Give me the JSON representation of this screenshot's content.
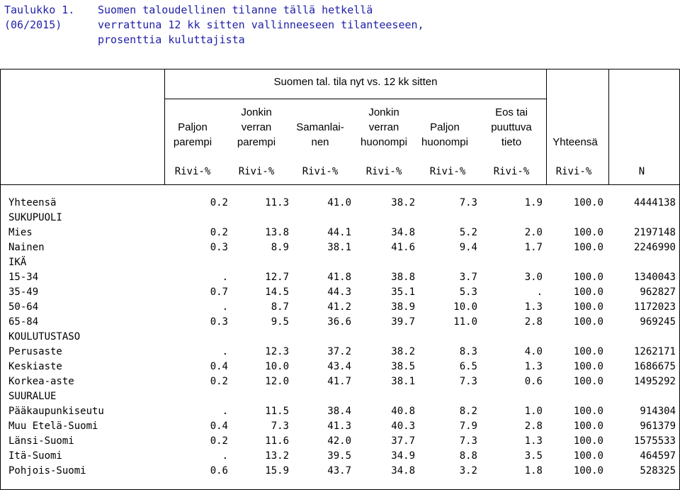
{
  "caption": {
    "label_lines": [
      "Taulukko 1.",
      "(06/2015)"
    ],
    "text_lines": [
      "Suomen taloudellinen tilanne tällä hetkellä",
      "verrattuna 12 kk sitten vallinneeseen tilanteeseen,",
      "prosenttia kuluttajista"
    ]
  },
  "header": {
    "group": "Suomen tal. tila nyt vs. 12 kk sitten",
    "columns": [
      [
        "",
        "Paljon",
        "parempi"
      ],
      [
        "Jonkin",
        "verran",
        "parempi"
      ],
      [
        "",
        "Samanlai-",
        "nen"
      ],
      [
        "Jonkin",
        "verran",
        "huonompi"
      ],
      [
        "",
        "Paljon",
        "huonompi"
      ],
      [
        "Eos tai",
        "puuttuva",
        "tieto"
      ],
      [
        "",
        "",
        "Yhteensä"
      ]
    ],
    "units": [
      "Rivi-%",
      "Rivi-%",
      "Rivi-%",
      "Rivi-%",
      "Rivi-%",
      "Rivi-%",
      "Rivi-%",
      "N"
    ]
  },
  "rows": [
    {
      "label": "Yhteensä",
      "values": [
        "0.2",
        "11.3",
        "41.0",
        "38.2",
        "7.3",
        "1.9",
        "100.0",
        "4444138"
      ]
    },
    {
      "label": "SUKUPUOLI",
      "values": []
    },
    {
      "label": "Mies",
      "values": [
        "0.2",
        "13.8",
        "44.1",
        "34.8",
        "5.2",
        "2.0",
        "100.0",
        "2197148"
      ]
    },
    {
      "label": "Nainen",
      "values": [
        "0.3",
        "8.9",
        "38.1",
        "41.6",
        "9.4",
        "1.7",
        "100.0",
        "2246990"
      ]
    },
    {
      "label": "IKÄ",
      "values": []
    },
    {
      "label": "15-34",
      "values": [
        ".",
        "12.7",
        "41.8",
        "38.8",
        "3.7",
        "3.0",
        "100.0",
        "1340043"
      ]
    },
    {
      "label": "35-49",
      "values": [
        "0.7",
        "14.5",
        "44.3",
        "35.1",
        "5.3",
        ".",
        "100.0",
        "962827"
      ]
    },
    {
      "label": "50-64",
      "values": [
        ".",
        "8.7",
        "41.2",
        "38.9",
        "10.0",
        "1.3",
        "100.0",
        "1172023"
      ]
    },
    {
      "label": "65-84",
      "values": [
        "0.3",
        "9.5",
        "36.6",
        "39.7",
        "11.0",
        "2.8",
        "100.0",
        "969245"
      ]
    },
    {
      "label": "KOULUTUSTASO",
      "values": []
    },
    {
      "label": "Perusaste",
      "values": [
        ".",
        "12.3",
        "37.2",
        "38.2",
        "8.3",
        "4.0",
        "100.0",
        "1262171"
      ]
    },
    {
      "label": "Keskiaste",
      "values": [
        "0.4",
        "10.0",
        "43.4",
        "38.5",
        "6.5",
        "1.3",
        "100.0",
        "1686675"
      ]
    },
    {
      "label": "Korkea-aste",
      "values": [
        "0.2",
        "12.0",
        "41.7",
        "38.1",
        "7.3",
        "0.6",
        "100.0",
        "1495292"
      ]
    },
    {
      "label": "SUURALUE",
      "values": []
    },
    {
      "label": "Pääkaupunkiseutu",
      "values": [
        ".",
        "11.5",
        "38.4",
        "40.8",
        "8.2",
        "1.0",
        "100.0",
        "914304"
      ]
    },
    {
      "label": "Muu Etelä-Suomi",
      "values": [
        "0.4",
        "7.3",
        "41.3",
        "40.3",
        "7.9",
        "2.8",
        "100.0",
        "961379"
      ]
    },
    {
      "label": "Länsi-Suomi",
      "values": [
        "0.2",
        "11.6",
        "42.0",
        "37.7",
        "7.3",
        "1.3",
        "100.0",
        "1575533"
      ]
    },
    {
      "label": "Itä-Suomi",
      "values": [
        ".",
        "13.2",
        "39.5",
        "34.9",
        "8.8",
        "3.5",
        "100.0",
        "464597"
      ]
    },
    {
      "label": "Pohjois-Suomi",
      "values": [
        "0.6",
        "15.9",
        "43.7",
        "34.8",
        "3.2",
        "1.8",
        "100.0",
        "528325"
      ]
    }
  ]
}
